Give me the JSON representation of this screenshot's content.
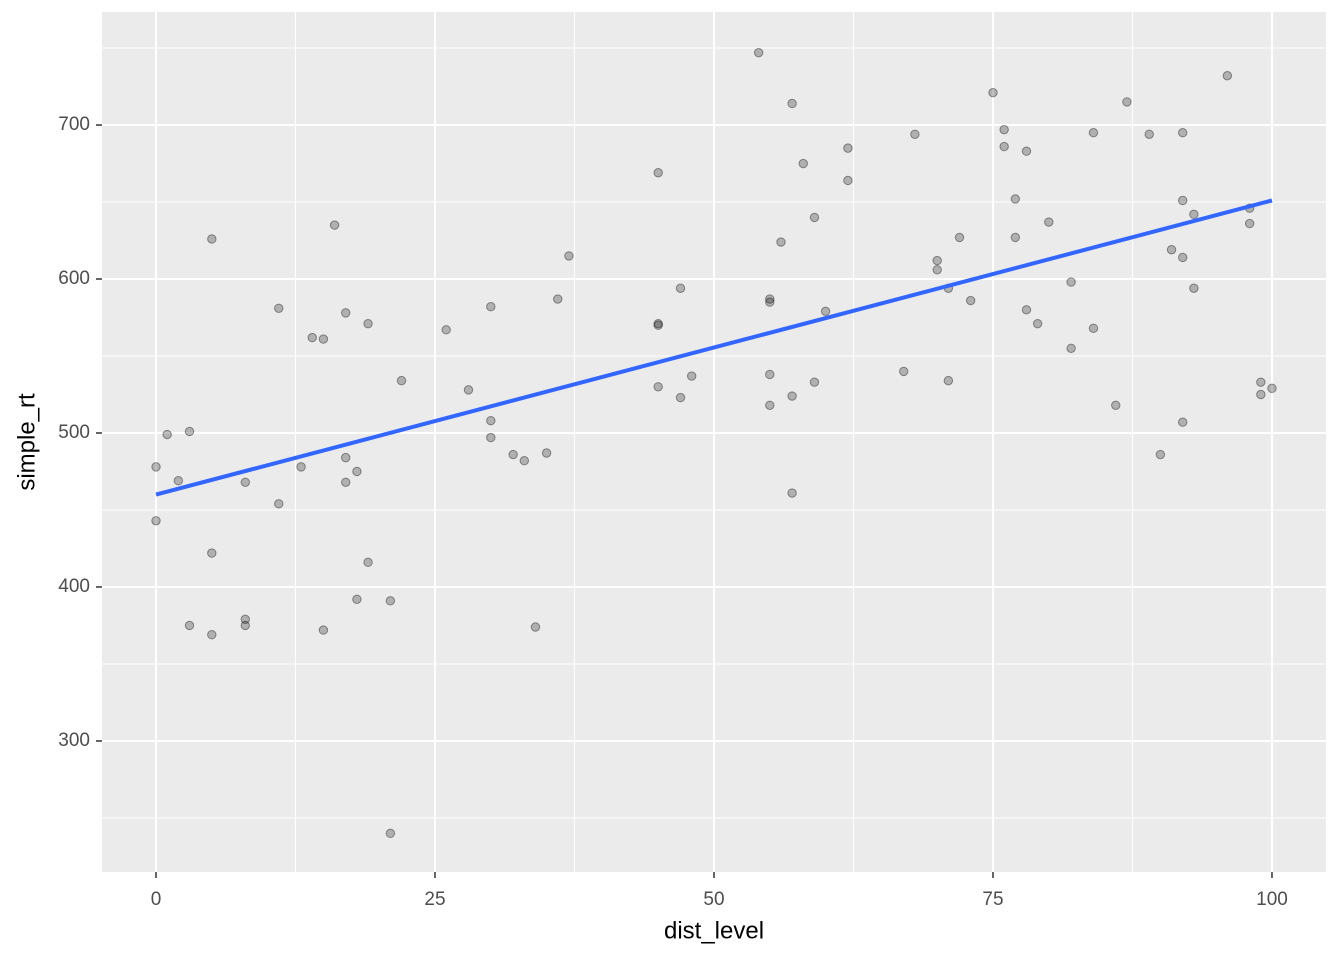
{
  "chart_data": {
    "type": "scatter",
    "x_label": "dist_level",
    "y_label": "simple_rt",
    "xlim": [
      -4.84,
      104.84
    ],
    "ylim": [
      214.9,
      773.4
    ],
    "xticks": [
      0,
      25,
      50,
      75,
      100
    ],
    "yticks": [
      300,
      400,
      500,
      600,
      700
    ],
    "minor_xticks": [
      12.5,
      37.5,
      62.5,
      87.5
    ],
    "minor_yticks": [
      250,
      350,
      450,
      550,
      650,
      750
    ],
    "grid": true,
    "point_color": "#000000",
    "point_opacity": 0.25,
    "x": [
      0,
      0,
      1,
      2,
      3,
      3,
      5,
      5,
      5,
      8,
      8,
      8,
      11,
      11,
      13,
      14,
      15,
      15,
      16,
      17,
      17,
      17,
      18,
      18,
      19,
      19,
      21,
      21,
      22,
      26,
      28,
      30,
      30,
      30,
      32,
      33,
      34,
      35,
      36,
      37,
      45,
      45,
      45,
      45,
      47,
      47,
      48,
      54,
      55,
      55,
      55,
      55,
      56,
      57,
      57,
      57,
      58,
      59,
      59,
      60,
      62,
      62,
      67,
      68,
      70,
      70,
      71,
      71,
      72,
      73,
      75,
      76,
      76,
      77,
      77,
      78,
      78,
      79,
      80,
      82,
      82,
      84,
      84,
      86,
      87,
      89,
      90,
      91,
      92,
      92,
      92,
      92,
      93,
      93,
      96,
      98,
      98,
      99,
      99,
      100
    ],
    "values": [
      478,
      443,
      499,
      469,
      501,
      375,
      626,
      422,
      369,
      468,
      379,
      375,
      581,
      454,
      478,
      562,
      561,
      372,
      635,
      578,
      484,
      468,
      475,
      392,
      571,
      416,
      391,
      240,
      534,
      567,
      528,
      582,
      508,
      497,
      486,
      482,
      374,
      487,
      587,
      615,
      669,
      571,
      570,
      530,
      594,
      523,
      537,
      747,
      587,
      585,
      538,
      518,
      624,
      714,
      524,
      461,
      675,
      640,
      533,
      579,
      685,
      664,
      540,
      694,
      612,
      606,
      594,
      534,
      627,
      586,
      721,
      697,
      686,
      652,
      627,
      683,
      580,
      571,
      637,
      598,
      555,
      695,
      568,
      518,
      715,
      694,
      486,
      619,
      695,
      651,
      614,
      507,
      642,
      594,
      732,
      646,
      636,
      533,
      525,
      529
    ],
    "fit": {
      "color": "#3366FF",
      "x": [
        0,
        100
      ],
      "values": [
        460,
        651
      ]
    }
  }
}
